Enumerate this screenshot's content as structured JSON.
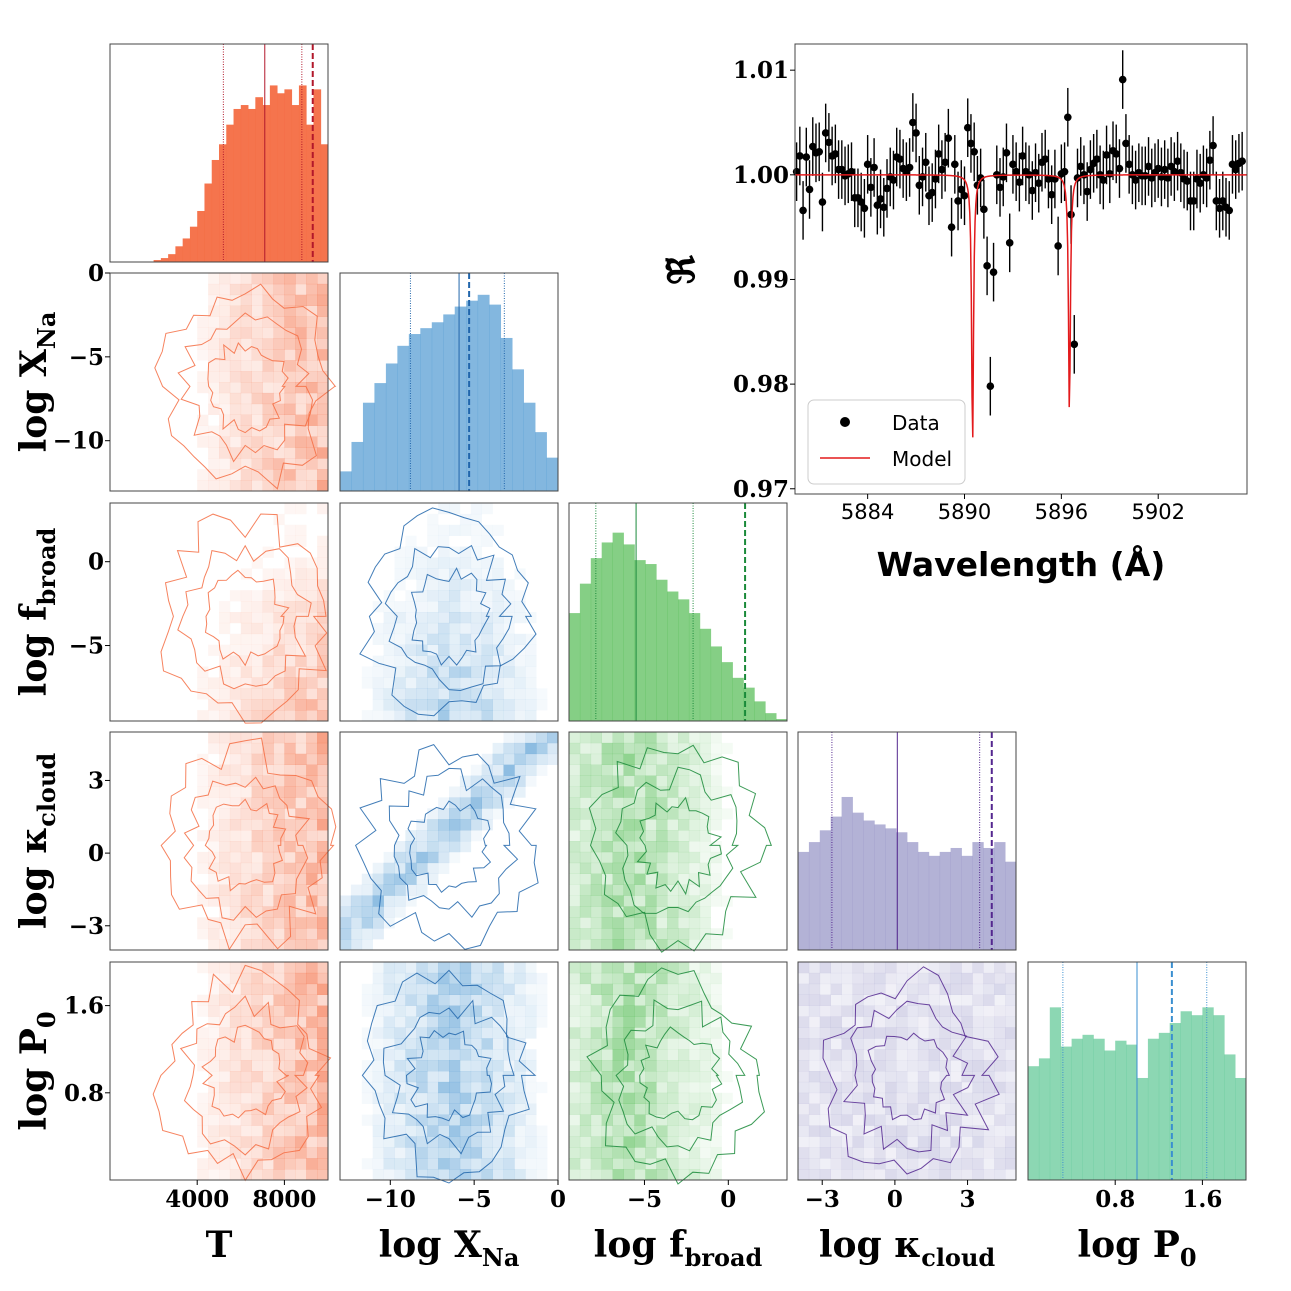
{
  "colors": {
    "T": "#f46d43",
    "T_dark": "#b2182b",
    "XNa": "#5a9fd4",
    "XNa_dark": "#2166ac",
    "fbroad": "#5cbf5c",
    "fbroad_dark": "#1a8a3a",
    "kcloud": "#9a98c8",
    "kcloud_dark": "#54278f",
    "P0": "#66c99a",
    "P0_line": "#3a8fd0",
    "data": "#000000",
    "model": "#e31a1c"
  },
  "corner": {
    "params": [
      {
        "key": "T",
        "label_base": "T",
        "label_sub": "",
        "range": [
          0,
          10000
        ],
        "ticks": [
          4000,
          8000
        ],
        "tick_labels": [
          "4000",
          "8000"
        ],
        "hist": [
          0,
          0,
          0,
          0,
          0,
          0,
          0.01,
          0.02,
          0.04,
          0.08,
          0.12,
          0.18,
          0.26,
          0.4,
          0.52,
          0.6,
          0.7,
          0.78,
          0.8,
          0.78,
          0.84,
          0.8,
          0.9,
          0.86,
          0.88,
          0.8,
          0.9,
          0.7,
          0.88,
          0.6
        ],
        "q16": 5200,
        "median": 7100,
        "q84": 8800,
        "truth": 9300
      },
      {
        "key": "XNa",
        "label_base": "log X",
        "label_sub": "Na",
        "range": [
          -13,
          0
        ],
        "ticks": [
          -10,
          -5,
          0
        ],
        "tick_labels": [
          "−10",
          "−5",
          "0"
        ],
        "hist": [
          0.1,
          0.25,
          0.45,
          0.55,
          0.65,
          0.74,
          0.8,
          0.83,
          0.86,
          0.9,
          0.94,
          0.97,
          1.0,
          0.95,
          0.78,
          0.62,
          0.45,
          0.3,
          0.17
        ],
        "q16": -8.8,
        "median": -5.9,
        "q84": -3.2,
        "truth": -5.3
      },
      {
        "key": "fbroad",
        "label_base": "log f",
        "label_sub": "broad",
        "range": [
          -9.5,
          3.5
        ],
        "ticks": [
          -5,
          0
        ],
        "tick_labels": [
          "−5",
          "0"
        ],
        "hist": [
          0.55,
          0.7,
          0.83,
          0.91,
          0.96,
          0.9,
          0.82,
          0.8,
          0.72,
          0.66,
          0.62,
          0.55,
          0.47,
          0.38,
          0.3,
          0.22,
          0.17,
          0.1,
          0.04,
          0.01
        ],
        "q16": -7.9,
        "median": -5.5,
        "q84": -2.1,
        "truth": 1.0
      },
      {
        "key": "kcloud",
        "label_base": "log κ",
        "label_sub": "cloud",
        "range": [
          -4,
          5
        ],
        "ticks": [
          -3,
          0,
          3
        ],
        "tick_labels": [
          "−3",
          "0",
          "3"
        ],
        "hist": [
          0.5,
          0.55,
          0.61,
          0.68,
          0.78,
          0.7,
          0.66,
          0.64,
          0.62,
          0.6,
          0.55,
          0.5,
          0.48,
          0.5,
          0.52,
          0.48,
          0.55,
          0.52,
          0.55,
          0.45
        ],
        "q16": -2.6,
        "median": 0.1,
        "q84": 3.5,
        "truth": 4.0
      },
      {
        "key": "P0",
        "label_base": "log P",
        "label_sub": "0",
        "range": [
          0,
          2
        ],
        "ticks": [
          0.8,
          1.6
        ],
        "tick_labels": [
          "0.8",
          "1.6"
        ],
        "hist": [
          0.58,
          0.62,
          0.88,
          0.68,
          0.72,
          0.74,
          0.72,
          0.66,
          0.71,
          0.69,
          0.52,
          0.72,
          0.75,
          0.8,
          0.86,
          0.84,
          0.88,
          0.84,
          0.64,
          0.52
        ],
        "q16": 0.32,
        "median": 1.0,
        "q84": 1.64,
        "truth": 1.32
      }
    ],
    "y_ticks": {
      "XNa": {
        "ticks": [
          0,
          -5,
          -10
        ],
        "tick_labels": [
          "0",
          "−5",
          "−10"
        ]
      },
      "fbroad": {
        "ticks": [
          0,
          -5
        ],
        "tick_labels": [
          "0",
          "−5"
        ]
      },
      "kcloud": {
        "ticks": [
          3,
          0,
          -3
        ],
        "tick_labels": [
          "3",
          "0",
          "−3"
        ]
      },
      "P0": {
        "ticks": [
          1.6,
          0.8
        ],
        "tick_labels": [
          "1.6",
          "0.8"
        ]
      }
    }
  },
  "chart_data": [
    {
      "type": "corner",
      "parameters": [
        "T",
        "log X_Na",
        "log f_broad",
        "log κ_cloud",
        "log P_0"
      ],
      "x_tick_labels": {
        "T": [
          "4000",
          "8000"
        ],
        "log X_Na": [
          "−10",
          "−5",
          "0"
        ],
        "log f_broad": [
          "−5",
          "0"
        ],
        "log κ_cloud": [
          "−3",
          "0",
          "3"
        ],
        "log P_0": [
          "0.8",
          "1.6"
        ]
      },
      "y_tick_labels": {
        "log X_Na": [
          "0",
          "−5",
          "−10"
        ],
        "log f_broad": [
          "0",
          "−5"
        ],
        "log κ_cloud": [
          "3",
          "0",
          "−3"
        ],
        "log P_0": [
          "1.6",
          "0.8"
        ]
      }
    },
    {
      "type": "scatter",
      "title": "",
      "xlabel": "Wavelength (Å)",
      "ylabel": "ℜ̃",
      "xlim": [
        5879.5,
        5907.5
      ],
      "ylim": [
        0.9695,
        1.0125
      ],
      "x_ticks": [
        5884,
        5890,
        5896,
        5902
      ],
      "x_tick_labels": [
        "5884",
        "5890",
        "5896",
        "5902"
      ],
      "y_ticks": [
        0.97,
        0.98,
        0.99,
        1.0,
        1.01
      ],
      "y_tick_labels": [
        "0.97",
        "0.98",
        "0.99",
        "1.00",
        "1.01"
      ],
      "legend": {
        "position": "bottom-left",
        "entries": [
          "Data",
          "Model"
        ]
      },
      "series": [
        {
          "name": "Data",
          "style": "points-with-errorbars",
          "x": [
            5879.6,
            5879.8,
            5880.0,
            5880.2,
            5880.4,
            5880.6,
            5880.8,
            5881.0,
            5881.2,
            5881.4,
            5881.6,
            5881.8,
            5882.0,
            5882.2,
            5882.4,
            5882.6,
            5882.8,
            5883.0,
            5883.2,
            5883.4,
            5883.6,
            5883.8,
            5884.0,
            5884.2,
            5884.4,
            5884.6,
            5884.8,
            5885.0,
            5885.2,
            5885.4,
            5885.6,
            5885.8,
            5886.0,
            5886.2,
            5886.4,
            5886.6,
            5886.8,
            5887.0,
            5887.2,
            5887.4,
            5887.6,
            5887.8,
            5888.0,
            5888.2,
            5888.4,
            5888.6,
            5888.8,
            5889.0,
            5889.2,
            5889.4,
            5889.6,
            5889.8,
            5890.0,
            5890.2,
            5890.4,
            5890.6,
            5890.8,
            5891.0,
            5891.2,
            5891.4,
            5891.6,
            5891.8,
            5892.0,
            5892.2,
            5892.4,
            5892.6,
            5892.8,
            5893.0,
            5893.2,
            5893.4,
            5893.6,
            5893.8,
            5894.0,
            5894.2,
            5894.4,
            5894.6,
            5894.8,
            5895.0,
            5895.2,
            5895.4,
            5895.6,
            5895.8,
            5896.0,
            5896.2,
            5896.4,
            5896.6,
            5896.8,
            5897.0,
            5897.2,
            5897.4,
            5897.6,
            5897.8,
            5898.0,
            5898.2,
            5898.4,
            5898.6,
            5898.8,
            5899.0,
            5899.2,
            5899.4,
            5899.6,
            5899.8,
            5900.0,
            5900.2,
            5900.4,
            5900.6,
            5900.8,
            5901.0,
            5901.2,
            5901.4,
            5901.6,
            5901.8,
            5902.0,
            5902.2,
            5902.4,
            5902.6,
            5902.8,
            5903.0,
            5903.2,
            5903.4,
            5903.6,
            5903.8,
            5904.0,
            5904.2,
            5904.4,
            5904.6,
            5904.8,
            5905.0,
            5905.2,
            5905.4,
            5905.6,
            5905.8,
            5906.0,
            5906.2,
            5906.4,
            5906.6,
            5906.8,
            5907.0,
            5907.2
          ],
          "y": [
            1.0003,
            1.0018,
            0.9966,
            1.0017,
            0.9986,
            1.0027,
            1.0021,
            1.0022,
            0.9974,
            1.004,
            1.0031,
            1.0018,
            1.002,
            1.0005,
            1.0005,
            0.9999,
            1.0001,
            1.0003,
            0.9978,
            0.9978,
            0.9974,
            0.9968,
            1.001,
            0.9988,
            1.0007,
            0.9971,
            0.9977,
            0.9969,
            0.9987,
            0.9998,
            0.9995,
            1.0017,
            1.0015,
            1.0006,
            1.0003,
            1.0007,
            1.005,
            1.004,
            0.999,
            0.9998,
            1.0012,
            0.998,
            0.9983,
            0.9996,
            1.002,
            1.0005,
            1.0012,
            1.0035,
            0.995,
            1.001,
            0.9975,
            0.9986,
            0.998,
            1.0045,
            1.003,
            1.0022,
            0.999,
            0.9997,
            0.9967,
            0.9913,
            0.9798,
            0.9907,
            1.0,
            0.9988,
            0.9998,
            1.0021,
            0.9935,
            1.001,
            1.0003,
            0.9993,
            1.0018,
            1.0003,
            1.0,
            0.9985,
            1.0002,
            0.9992,
            1.0012,
            1.0015,
            0.9996,
            0.9981,
            0.9996,
            0.9932,
            1.0001,
            1.0003,
            1.0055,
            0.9962,
            0.9838,
            0.9997,
            1.0008,
            1.0,
            0.9984,
            1.0005,
            1.0011,
            1.0015,
            1.0,
            0.9995,
            1.0019,
            1.0001,
            1.0023,
            1.002,
            1.0006,
            1.0091,
            1.003,
            1.001,
            1.0,
            0.9995,
            1.0002,
            0.9999,
            0.9999,
            1.0008,
            0.9997,
            1.0002,
            1.0006,
            0.9998,
            1.0005,
            0.9997,
            1.0008,
            1.0003,
            1.0013,
            1.0002,
            0.9996,
            0.9994,
            0.9975,
            0.9975,
            0.9996,
            0.9992,
            1.0,
            0.9997,
            1.0014,
            1.0028,
            0.9975,
            0.9968,
            0.9975,
            0.9969,
            0.9966,
            1.001,
            1.0005,
            1.0011,
            1.0013
          ],
          "yerr": 0.0028
        },
        {
          "name": "Model",
          "style": "line",
          "line_center_1": 5890.5,
          "line_depth_1": 0.026,
          "line_center_2": 5896.5,
          "line_depth_2": 0.023,
          "continuum": 1.0
        }
      ]
    }
  ],
  "legend": {
    "data_label": "Data",
    "model_label": "Model"
  },
  "spectrum_axes": {
    "xlabel": "Wavelength (Å)",
    "ylabel": "ℜ̃"
  }
}
